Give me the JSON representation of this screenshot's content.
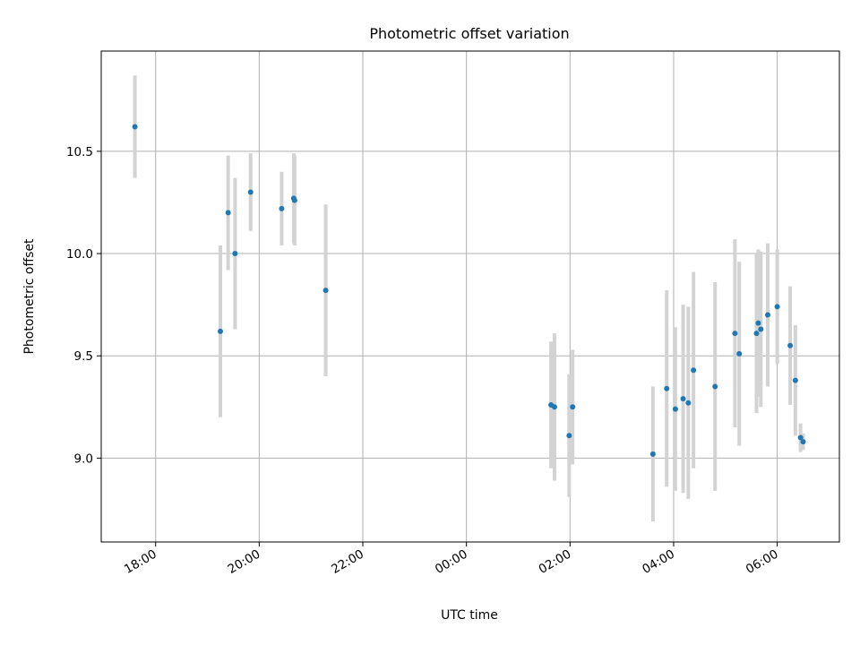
{
  "chart_data": {
    "type": "scatter",
    "title": "Photometric offset variation",
    "xlabel": "UTC time",
    "ylabel": "Photometric offset",
    "xlim": [
      "2000-01-01T16:57",
      "2000-01-02T07:12"
    ],
    "ylim": [
      8.59,
      10.99
    ],
    "grid": true,
    "marker_color": "#1f77b4",
    "errorbar_color": "#d3d3d3",
    "x_ticks": [
      {
        "t": "2000-01-01T18:00",
        "label": "18:00"
      },
      {
        "t": "2000-01-01T20:00",
        "label": "20:00"
      },
      {
        "t": "2000-01-01T22:00",
        "label": "22:00"
      },
      {
        "t": "2000-01-02T00:00",
        "label": "00:00"
      },
      {
        "t": "2000-01-02T02:00",
        "label": "02:00"
      },
      {
        "t": "2000-01-02T04:00",
        "label": "04:00"
      },
      {
        "t": "2000-01-02T06:00",
        "label": "06:00"
      }
    ],
    "y_ticks": [
      {
        "v": 9.0,
        "label": "9.0"
      },
      {
        "v": 9.5,
        "label": "9.5"
      },
      {
        "v": 10.0,
        "label": "10.0"
      },
      {
        "v": 10.5,
        "label": "10.5"
      }
    ],
    "points": [
      {
        "t": "2000-01-01T17:36",
        "y": 10.62,
        "err": 0.25
      },
      {
        "t": "2000-01-01T19:15",
        "y": 9.62,
        "err": 0.42
      },
      {
        "t": "2000-01-01T19:24",
        "y": 10.2,
        "err": 0.28
      },
      {
        "t": "2000-01-01T19:32",
        "y": 10.0,
        "err": 0.37
      },
      {
        "t": "2000-01-01T19:50",
        "y": 10.3,
        "err": 0.19
      },
      {
        "t": "2000-01-01T20:26",
        "y": 10.22,
        "err": 0.18
      },
      {
        "t": "2000-01-01T20:40",
        "y": 10.27,
        "err": 0.22
      },
      {
        "t": "2000-01-01T20:41",
        "y": 10.26,
        "err": 0.22
      },
      {
        "t": "2000-01-01T21:17",
        "y": 9.82,
        "err": 0.42
      },
      {
        "t": "2000-01-02T01:38",
        "y": 9.26,
        "err": 0.31
      },
      {
        "t": "2000-01-02T01:42",
        "y": 9.25,
        "err": 0.36
      },
      {
        "t": "2000-01-02T01:59",
        "y": 9.11,
        "err": 0.3
      },
      {
        "t": "2000-01-02T02:03",
        "y": 9.25,
        "err": 0.28
      },
      {
        "t": "2000-01-02T03:36",
        "y": 9.02,
        "err": 0.33
      },
      {
        "t": "2000-01-02T03:52",
        "y": 9.34,
        "err": 0.48
      },
      {
        "t": "2000-01-02T04:02",
        "y": 9.24,
        "err": 0.4
      },
      {
        "t": "2000-01-02T04:11",
        "y": 9.29,
        "err": 0.46
      },
      {
        "t": "2000-01-02T04:17",
        "y": 9.27,
        "err": 0.47
      },
      {
        "t": "2000-01-02T04:23",
        "y": 9.43,
        "err": 0.48
      },
      {
        "t": "2000-01-02T04:48",
        "y": 9.35,
        "err": 0.51
      },
      {
        "t": "2000-01-02T05:11",
        "y": 9.61,
        "err": 0.46
      },
      {
        "t": "2000-01-02T05:16",
        "y": 9.51,
        "err": 0.45
      },
      {
        "t": "2000-01-02T05:36",
        "y": 9.61,
        "err": 0.39
      },
      {
        "t": "2000-01-02T05:38",
        "y": 9.66,
        "err": 0.36
      },
      {
        "t": "2000-01-02T05:41",
        "y": 9.63,
        "err": 0.38
      },
      {
        "t": "2000-01-02T05:49",
        "y": 9.7,
        "err": 0.35
      },
      {
        "t": "2000-01-02T06:00",
        "y": 9.74,
        "err": 0.28
      },
      {
        "t": "2000-01-02T06:15",
        "y": 9.55,
        "err": 0.29
      },
      {
        "t": "2000-01-02T06:21",
        "y": 9.38,
        "err": 0.27
      },
      {
        "t": "2000-01-02T06:27",
        "y": 9.1,
        "err": 0.07
      },
      {
        "t": "2000-01-02T06:30",
        "y": 9.08,
        "err": 0.04
      }
    ]
  }
}
